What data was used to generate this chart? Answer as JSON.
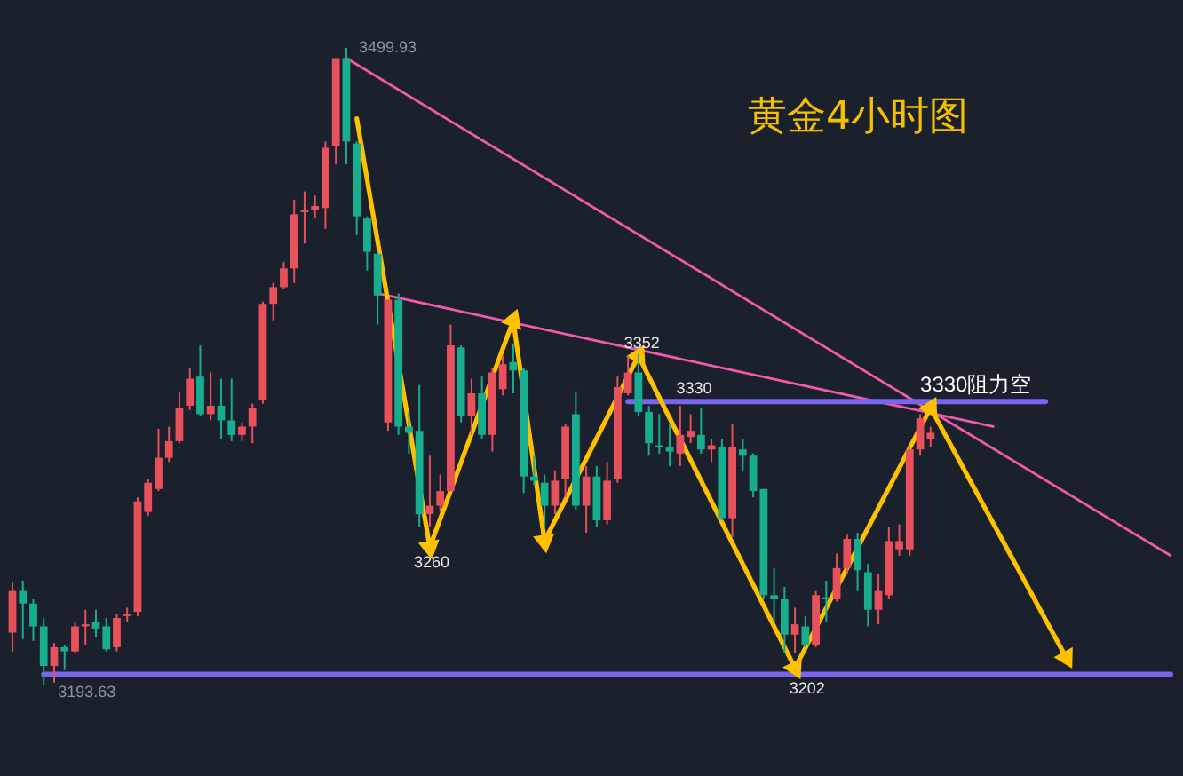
{
  "chart_data": {
    "type": "candlestick",
    "title": "黄金4小时图",
    "categories": [
      null,
      null,
      null,
      null,
      null,
      null,
      null,
      null,
      null,
      null,
      null,
      null,
      null,
      null,
      null,
      null,
      null,
      null,
      null,
      null,
      null,
      null,
      null,
      null,
      null,
      null,
      null,
      null,
      null,
      null,
      null,
      null,
      null,
      null,
      null,
      null,
      null,
      null,
      null,
      null,
      null,
      null,
      null,
      null,
      null,
      null,
      null,
      null,
      null,
      null,
      null,
      null,
      null,
      null,
      null,
      null,
      null,
      null,
      null,
      null,
      null,
      null,
      null,
      null,
      null,
      null,
      null,
      null,
      null,
      null,
      null,
      null,
      null,
      null,
      null,
      null,
      null,
      null,
      null,
      null,
      null,
      null,
      null,
      null,
      null,
      null,
      null,
      null,
      null,
      null,
      null,
      null,
      null,
      null,
      null,
      null,
      null,
      null,
      null,
      null,
      null,
      null,
      null,
      null,
      null,
      null,
      null,
      null,
      null,
      null,
      null,
      null
    ],
    "tick_labels": false,
    "marker": "none",
    "series": [
      {
        "ohlc": [
          [
            3219,
            3243,
            3210,
            3239
          ],
          [
            3239,
            3244,
            3216,
            3233
          ],
          [
            3233,
            3235,
            3215,
            3222
          ],
          [
            3222,
            3226,
            3193.63,
            3203
          ],
          [
            3203,
            3214,
            3195,
            3212
          ],
          [
            3212,
            3213,
            3201,
            3210
          ],
          [
            3210,
            3224,
            3209,
            3222
          ],
          [
            3222,
            3230,
            3213,
            3223
          ],
          [
            3224,
            3230,
            3217,
            3221
          ],
          [
            3222,
            3226,
            3210,
            3211
          ],
          [
            3212,
            3228,
            3210,
            3226
          ],
          [
            3227,
            3231,
            3224,
            3228
          ],
          [
            3229,
            3284,
            3227,
            3282
          ],
          [
            3277,
            3293,
            3275,
            3291
          ],
          [
            3288,
            3317,
            3287,
            3303
          ],
          [
            3303,
            3318,
            3301,
            3311
          ],
          [
            3311,
            3335,
            3310,
            3327
          ],
          [
            3328,
            3346,
            3326,
            3341
          ],
          [
            3342,
            3357,
            3323,
            3324
          ],
          [
            3324,
            3344,
            3321,
            3328
          ],
          [
            3328,
            3341,
            3312,
            3321
          ],
          [
            3321,
            3341,
            3311,
            3314
          ],
          [
            3314,
            3320,
            3311,
            3318
          ],
          [
            3318,
            3329,
            3310,
            3327
          ],
          [
            3331,
            3378,
            3329,
            3377
          ],
          [
            3377,
            3387,
            3369,
            3385
          ],
          [
            3385,
            3397,
            3384,
            3394
          ],
          [
            3394,
            3427,
            3387,
            3420
          ],
          [
            3421,
            3431,
            3406,
            3422
          ],
          [
            3422,
            3429,
            3418,
            3424
          ],
          [
            3423,
            3455,
            3413,
            3452
          ],
          [
            3453,
            3495,
            3444,
            3495
          ],
          [
            3495,
            3499.93,
            3444,
            3455
          ],
          [
            3454,
            3455,
            3410,
            3419
          ],
          [
            3418,
            3419,
            3393,
            3402
          ],
          [
            3401,
            3402,
            3367,
            3381
          ],
          [
            3320,
            3379,
            3316,
            3379
          ],
          [
            3379,
            3382,
            3314,
            3318
          ],
          [
            3318,
            3325,
            3305,
            3315
          ],
          [
            3316,
            3338,
            3270,
            3276
          ],
          [
            3276,
            3304,
            3270,
            3280
          ],
          [
            3280,
            3295,
            3277,
            3287
          ],
          [
            3287,
            3367,
            3287,
            3357
          ],
          [
            3356,
            3357,
            3320,
            3323
          ],
          [
            3323,
            3341,
            3314,
            3334
          ],
          [
            3334,
            3342,
            3312,
            3314
          ],
          [
            3314,
            3346,
            3306,
            3344
          ],
          [
            3336,
            3352,
            3333,
            3348
          ],
          [
            3349,
            3358,
            3334,
            3345
          ],
          [
            3345,
            3346,
            3286,
            3294
          ],
          [
            3294,
            3304,
            3290,
            3292
          ],
          [
            3291,
            3295,
            3270,
            3280
          ],
          [
            3280,
            3297,
            3276,
            3292
          ],
          [
            3293,
            3319,
            3284,
            3318
          ],
          [
            3324,
            3335,
            3278,
            3280
          ],
          [
            3280,
            3299,
            3267,
            3294
          ],
          [
            3294,
            3299,
            3270,
            3273
          ],
          [
            3273,
            3301,
            3271,
            3292
          ],
          [
            3293,
            3342,
            3291,
            3337
          ],
          [
            3334,
            3352,
            3333,
            3344
          ],
          [
            3344,
            3353,
            3323,
            3325
          ],
          [
            3325,
            3328,
            3304,
            3310
          ],
          [
            3309,
            3324,
            3305,
            3308
          ],
          [
            3308,
            3319,
            3299,
            3306
          ],
          [
            3305,
            3328,
            3299,
            3314
          ],
          [
            3313,
            3324,
            3310,
            3316
          ],
          [
            3314,
            3327,
            3305,
            3307
          ],
          [
            3307,
            3312,
            3301,
            3309
          ],
          [
            3308,
            3312,
            3273,
            3274
          ],
          [
            3274,
            3319,
            3265,
            3308
          ],
          [
            3307,
            3312,
            3297,
            3304
          ],
          [
            3304,
            3305,
            3284,
            3287
          ],
          [
            3288,
            3288,
            3235,
            3237
          ],
          [
            3237,
            3250,
            3224,
            3235
          ],
          [
            3235,
            3241,
            3209,
            3218
          ],
          [
            3218,
            3231,
            3209,
            3223
          ],
          [
            3222,
            3227,
            3212,
            3213
          ],
          [
            3213,
            3239,
            3212,
            3237
          ],
          [
            3236,
            3244,
            3224,
            3235
          ],
          [
            3235,
            3257,
            3234,
            3250
          ],
          [
            3250,
            3266,
            3247,
            3264
          ],
          [
            3264,
            3267,
            3239,
            3249
          ],
          [
            3248,
            3252,
            3222,
            3230
          ],
          [
            3230,
            3247,
            3223,
            3239
          ],
          [
            3237,
            3270,
            3235,
            3263
          ],
          [
            3259,
            3271,
            3256,
            3263
          ],
          [
            3259,
            3308,
            3256,
            3307
          ],
          [
            3307,
            3324,
            3304,
            3322
          ],
          [
            3312,
            3318,
            3308,
            3315
          ],
          null,
          null,
          null,
          null,
          null,
          null,
          null,
          null,
          null,
          null,
          null,
          null,
          null,
          null,
          null,
          null,
          null,
          null,
          null,
          null,
          null,
          null,
          null
        ],
        "colors": [
          "#e8505b",
          "#16ae8e",
          "#16ae8e",
          "#16ae8e",
          "#e8505b",
          "#16ae8e",
          "#e8505b",
          "#e8505b",
          "#16ae8e",
          "#16ae8e",
          "#e8505b",
          "#e8505b",
          "#e8505b",
          "#e8505b",
          "#e8505b",
          "#e8505b",
          "#e8505b",
          "#e8505b",
          "#16ae8e",
          "#e8505b",
          "#16ae8e",
          "#16ae8e",
          "#e8505b",
          "#e8505b",
          "#e8505b",
          "#e8505b",
          "#e8505b",
          "#e8505b",
          "#e8505b",
          "#e8505b",
          "#e8505b",
          "#e8505b",
          "#16ae8e",
          "#16ae8e",
          "#16ae8e",
          "#16ae8e",
          "#e8505b",
          "#16ae8e",
          "#16ae8e",
          "#16ae8e",
          "#e8505b",
          "#e8505b",
          "#e8505b",
          "#16ae8e",
          "#e8505b",
          "#16ae8e",
          "#e8505b",
          "#e8505b",
          "#16ae8e",
          "#16ae8e",
          "#16ae8e",
          "#16ae8e",
          "#e8505b",
          "#e8505b",
          "#16ae8e",
          "#e8505b",
          "#16ae8e",
          "#e8505b",
          "#e8505b",
          "#e8505b",
          "#16ae8e",
          "#16ae8e",
          "#16ae8e",
          "#16ae8e",
          "#e8505b",
          "#e8505b",
          "#16ae8e",
          "#e8505b",
          "#16ae8e",
          "#e8505b",
          "#16ae8e",
          "#16ae8e",
          "#16ae8e",
          "#16ae8e",
          "#16ae8e",
          "#e8505b",
          "#16ae8e",
          "#e8505b",
          "#16ae8e",
          "#e8505b",
          "#e8505b",
          "#16ae8e",
          "#16ae8e",
          "#e8505b",
          "#e8505b",
          "#e8505b",
          "#e8505b",
          "#e8505b",
          "#e8505b",
          null,
          null,
          null,
          null,
          null,
          null,
          null,
          null,
          null,
          null,
          null,
          null,
          null,
          null,
          null,
          null,
          null,
          null,
          null,
          null,
          null,
          null,
          null
        ]
      },
      {
        "type": "line",
        "color": "#f05aaa",
        "values": [
          null,
          null,
          null,
          null,
          null,
          null,
          null,
          null,
          null,
          null,
          null,
          null,
          null,
          null,
          null,
          null,
          null,
          null,
          null,
          null,
          null,
          null,
          null,
          null,
          null,
          null,
          null,
          null,
          null,
          null,
          null,
          null,
          3495,
          null,
          null,
          null,
          null,
          null,
          null,
          null,
          null,
          null,
          null,
          null,
          null,
          null,
          null,
          null,
          null,
          null,
          null,
          null,
          null,
          null,
          null,
          null,
          null,
          null,
          null,
          null,
          null,
          null,
          null,
          null,
          null,
          null,
          null,
          null,
          null,
          null,
          null,
          null,
          null,
          null,
          null,
          null,
          null,
          null,
          null,
          null,
          null,
          null,
          null,
          null,
          null,
          null,
          null,
          null,
          null,
          null,
          null,
          null,
          null,
          null,
          null,
          null,
          null,
          null,
          null,
          null,
          null,
          null,
          null,
          null,
          null,
          null,
          null,
          null,
          null,
          null,
          null,
          3256
        ]
      },
      {
        "type": "line",
        "color": "#f05aaa",
        "values": [
          null,
          null,
          null,
          null,
          null,
          null,
          null,
          null,
          null,
          null,
          null,
          null,
          null,
          null,
          null,
          null,
          null,
          null,
          null,
          null,
          null,
          null,
          null,
          null,
          null,
          null,
          null,
          null,
          null,
          null,
          null,
          null,
          null,
          null,
          null,
          3382,
          null,
          null,
          null,
          null,
          null,
          null,
          null,
          null,
          null,
          null,
          null,
          null,
          null,
          null,
          null,
          null,
          null,
          null,
          null,
          null,
          null,
          null,
          null,
          null,
          null,
          null,
          null,
          null,
          null,
          null,
          null,
          null,
          null,
          null,
          null,
          null,
          null,
          null,
          null,
          null,
          null,
          null,
          null,
          null,
          null,
          null,
          null,
          null,
          null,
          null,
          null,
          null,
          null,
          null,
          null,
          null,
          null,
          null,
          3318,
          null,
          null,
          null,
          null,
          null,
          null,
          null,
          null,
          null,
          null,
          null,
          null,
          null,
          null,
          null,
          null,
          null
        ]
      },
      {
        "type": "line",
        "color": "#7864f0",
        "values": [
          null,
          null,
          null,
          null,
          null,
          null,
          null,
          null,
          null,
          null,
          null,
          null,
          null,
          null,
          null,
          null,
          null,
          null,
          null,
          null,
          null,
          null,
          null,
          null,
          null,
          null,
          null,
          null,
          null,
          null,
          null,
          null,
          null,
          null,
          null,
          null,
          null,
          null,
          null,
          null,
          null,
          null,
          null,
          null,
          null,
          null,
          null,
          null,
          null,
          null,
          null,
          null,
          null,
          null,
          null,
          null,
          null,
          null,
          null,
          3330,
          null,
          null,
          null,
          null,
          null,
          null,
          null,
          null,
          null,
          null,
          null,
          null,
          null,
          null,
          null,
          null,
          null,
          null,
          null,
          null,
          null,
          null,
          null,
          null,
          null,
          null,
          null,
          null,
          null,
          null,
          null,
          null,
          null,
          null,
          null,
          null,
          null,
          null,
          null,
          3330,
          null,
          null,
          null,
          null,
          null,
          null,
          null,
          null,
          null,
          null,
          null,
          null
        ]
      },
      {
        "type": "line",
        "color": "#7864f0",
        "values": [
          null,
          null,
          null,
          3199,
          null,
          null,
          null,
          null,
          null,
          null,
          null,
          null,
          null,
          null,
          null,
          null,
          null,
          null,
          null,
          null,
          null,
          null,
          null,
          null,
          null,
          null,
          null,
          null,
          null,
          null,
          null,
          null,
          null,
          null,
          null,
          null,
          null,
          null,
          null,
          null,
          null,
          null,
          null,
          null,
          null,
          null,
          null,
          null,
          null,
          null,
          null,
          null,
          null,
          null,
          null,
          null,
          null,
          null,
          null,
          null,
          null,
          null,
          null,
          null,
          null,
          null,
          null,
          null,
          null,
          null,
          null,
          null,
          null,
          null,
          null,
          null,
          null,
          null,
          null,
          null,
          null,
          null,
          null,
          null,
          null,
          null,
          null,
          null,
          null,
          null,
          null,
          null,
          null,
          null,
          null,
          null,
          null,
          null,
          null,
          null,
          null,
          null,
          null,
          null,
          null,
          null,
          null,
          null,
          null,
          null,
          null,
          3199
        ]
      },
      {
        "type": "line",
        "color": "#ffc000",
        "marker": "triangle",
        "values": [
          null,
          null,
          null,
          null,
          null,
          null,
          null,
          null,
          null,
          null,
          null,
          null,
          null,
          null,
          null,
          null,
          null,
          null,
          null,
          null,
          null,
          null,
          null,
          null,
          null,
          null,
          null,
          null,
          null,
          null,
          null,
          null,
          null,
          3466,
          null,
          null,
          null,
          null,
          null,
          null,
          3260,
          null,
          null,
          null,
          null,
          null,
          null,
          null,
          3369,
          null,
          null,
          3263,
          null,
          null,
          null,
          null,
          null,
          null,
          null,
          null,
          3352,
          null,
          null,
          null,
          null,
          null,
          null,
          null,
          null,
          null,
          null,
          null,
          null,
          null,
          null,
          3202,
          null,
          null,
          null,
          null,
          null,
          null,
          null,
          null,
          null,
          null,
          null,
          null,
          3327,
          null,
          null,
          null,
          null,
          null,
          null,
          null,
          null,
          null,
          null,
          null,
          null,
          3207,
          null,
          null,
          null,
          null,
          null,
          null,
          null,
          null,
          null,
          null
        ]
      }
    ],
    "annotations": [
      "3499.93",
      {
        "text": "3193.63",
        "y": 3193.63
      },
      {
        "text": "3260",
        "y": 3260
      },
      {
        "text": "3352",
        "y": 3352
      },
      {
        "text": "3330",
        "y": 3330
      },
      {
        "text": "3202",
        "y": 3202
      },
      {
        "text": "3330阻力空",
        "y": 3330
      }
    ]
  }
}
